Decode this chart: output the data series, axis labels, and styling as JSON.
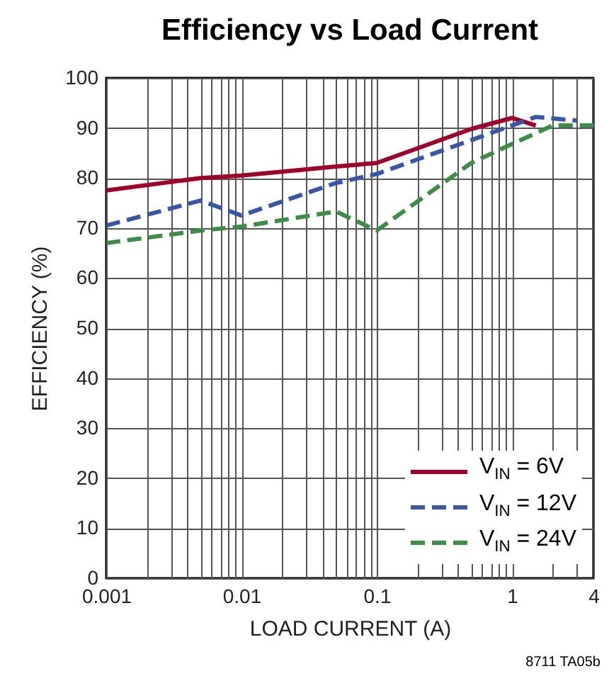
{
  "chart_data": {
    "type": "line",
    "title": "Efficiency vs Load Current",
    "xlabel": "LOAD CURRENT (A)",
    "ylabel": "EFFICIENCY (%)",
    "log": "x",
    "grid": true,
    "legend": "bottom right",
    "xlim": [
      0.001,
      4
    ],
    "ylim": [
      0,
      100
    ],
    "xticks": [
      0.001,
      {
        "value": 0.002,
        "label": null
      },
      {
        "value": 0.003,
        "label": null
      },
      {
        "value": 0.004,
        "label": null
      },
      {
        "value": 0.005,
        "label": null
      },
      {
        "value": 0.006,
        "label": null
      },
      {
        "value": 0.007,
        "label": null
      },
      {
        "value": 0.008,
        "label": null
      },
      {
        "value": 0.009,
        "label": null
      },
      0.01,
      {
        "value": 0.02,
        "label": null
      },
      {
        "value": 0.03,
        "label": null
      },
      {
        "value": 0.04,
        "label": null
      },
      {
        "value": 0.05,
        "label": null
      },
      {
        "value": 0.06,
        "label": null
      },
      {
        "value": 0.07,
        "label": null
      },
      {
        "value": 0.08,
        "label": null
      },
      {
        "value": 0.09,
        "label": null
      },
      0.1,
      {
        "value": 0.2,
        "label": null
      },
      {
        "value": 0.3,
        "label": null
      },
      {
        "value": 0.4,
        "label": null
      },
      {
        "value": 0.5,
        "label": null
      },
      {
        "value": 0.6,
        "label": null
      },
      {
        "value": 0.7,
        "label": null
      },
      {
        "value": 0.8,
        "label": null
      },
      {
        "value": 0.9,
        "label": null
      },
      1,
      {
        "value": 2,
        "label": null
      },
      {
        "value": 3,
        "label": null
      },
      4
    ],
    "yticks": [
      0,
      10,
      20,
      30,
      40,
      50,
      60,
      70,
      80,
      90,
      100
    ],
    "series": [
      {
        "name": "V$_{IN}$ = 6V",
        "color": "#a0002a",
        "line_style": "solid",
        "x": [
          0.001,
          0.005,
          0.01,
          0.05,
          0.1,
          0.5,
          1,
          1.5
        ],
        "values": [
          77.5,
          80,
          80.5,
          82.3,
          83,
          89.8,
          92,
          90.5
        ]
      },
      {
        "name": "V$_{IN}$ = 12V",
        "color": "#3a56a8",
        "line_style": "dashed",
        "x": [
          0.001,
          0.005,
          0.01,
          0.05,
          0.1,
          1,
          1.5,
          3
        ],
        "values": [
          70.5,
          75.5,
          72.5,
          79,
          80.8,
          90.5,
          92.2,
          91.5
        ]
      },
      {
        "name": "V$_{IN}$ = 24V",
        "color": "#3d8c48",
        "line_style": "dashed",
        "x": [
          0.001,
          0.005,
          0.01,
          0.05,
          0.1,
          0.5,
          1,
          2,
          4
        ],
        "values": [
          67,
          69.5,
          70.3,
          73.3,
          69.5,
          83,
          86.8,
          90.5,
          90.5
        ]
      }
    ],
    "annotations": [
      "8711 TA05b"
    ]
  }
}
